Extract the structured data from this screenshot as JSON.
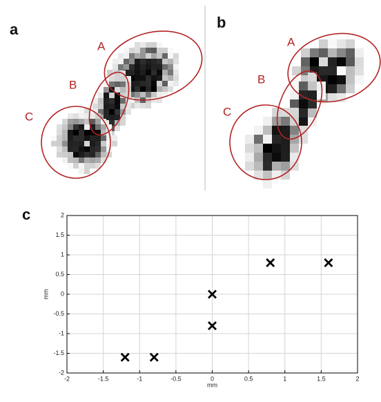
{
  "panels": [
    {
      "label": "a",
      "regions": [
        "A",
        "B",
        "C"
      ]
    },
    {
      "label": "b",
      "regions": [
        "A",
        "B",
        "C"
      ]
    }
  ],
  "chart_data": {
    "type": "scatter",
    "panel_label": "c",
    "x_label": "mm",
    "y_label": "mm",
    "x": [
      -1.2,
      -0.8,
      0,
      0,
      0.8,
      1.6
    ],
    "y": [
      -1.6,
      -1.6,
      -0.8,
      0,
      0.8,
      0.8
    ],
    "color": "#000000",
    "marker": "x",
    "xlim": [
      -2,
      2
    ],
    "ylim": [
      -2,
      2
    ],
    "xticks": [
      -2,
      -1.5,
      -1,
      -0.5,
      0,
      0.5,
      1,
      1.5,
      2
    ],
    "yticks": [
      -2,
      -1.5,
      -1,
      -0.5,
      0,
      0.5,
      1,
      1.5,
      2
    ],
    "grid": true
  }
}
